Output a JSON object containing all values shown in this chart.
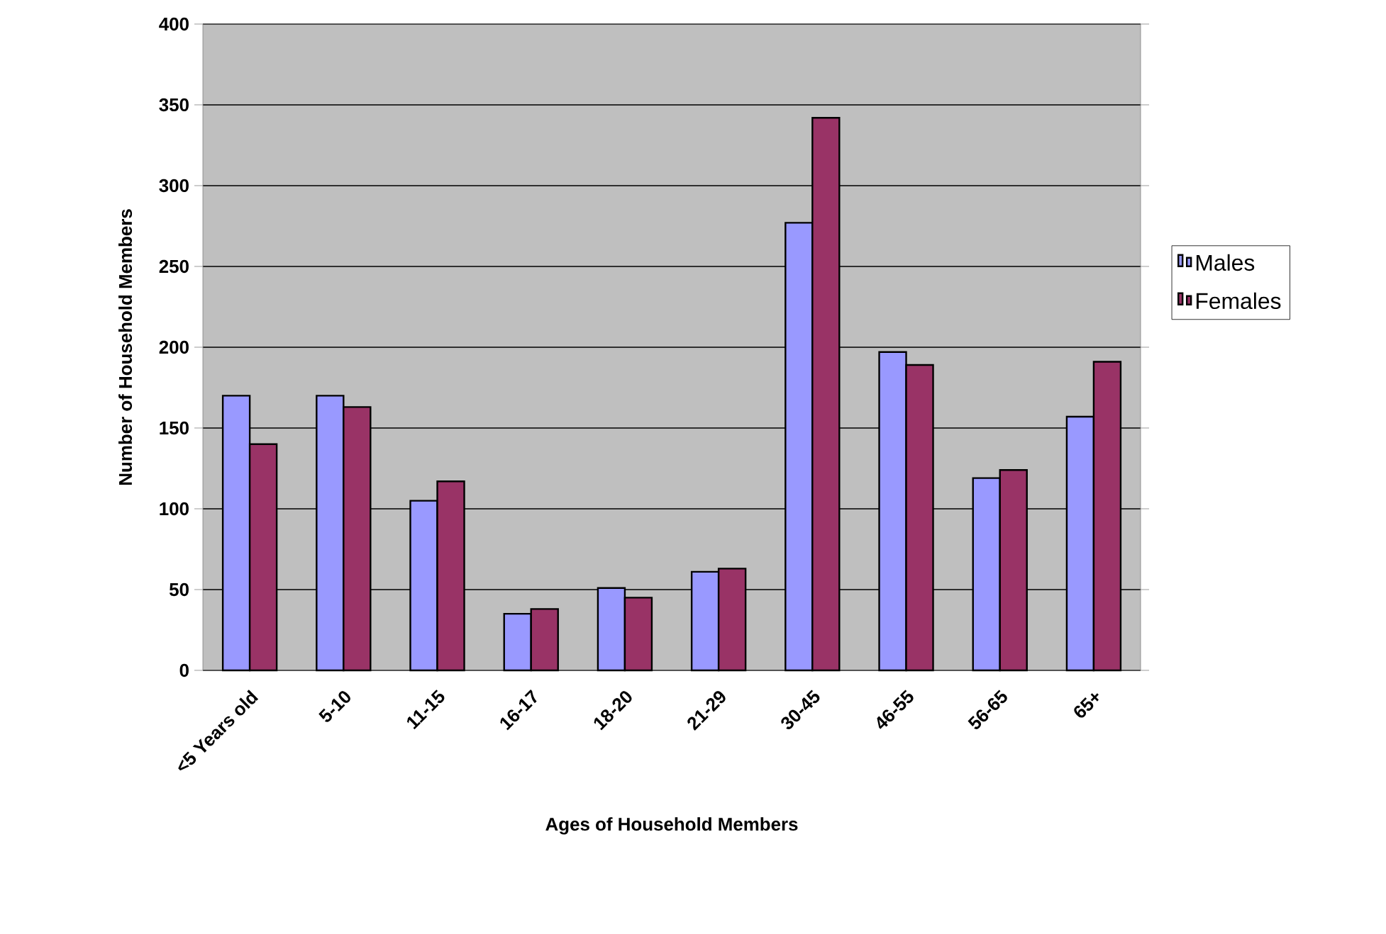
{
  "chart_data": {
    "type": "bar",
    "xlabel": "Ages of Household Members",
    "ylabel": "Number of Household Members",
    "categories": [
      "<5 Years old",
      "5-10",
      "11-15",
      "16-17",
      "18-20",
      "21-29",
      "30-45",
      "46-55",
      "56-65",
      "65+"
    ],
    "series": [
      {
        "name": "Males",
        "color": "#9999ff",
        "values": [
          170,
          170,
          105,
          35,
          51,
          61,
          277,
          197,
          119,
          157
        ]
      },
      {
        "name": "Females",
        "color": "#993366",
        "values": [
          140,
          163,
          117,
          38,
          45,
          63,
          342,
          189,
          124,
          191
        ]
      }
    ],
    "ylim": [
      0,
      400
    ],
    "yticks": [
      0,
      50,
      100,
      150,
      200,
      250,
      300,
      350,
      400
    ],
    "grid": "y",
    "legend": "right"
  }
}
